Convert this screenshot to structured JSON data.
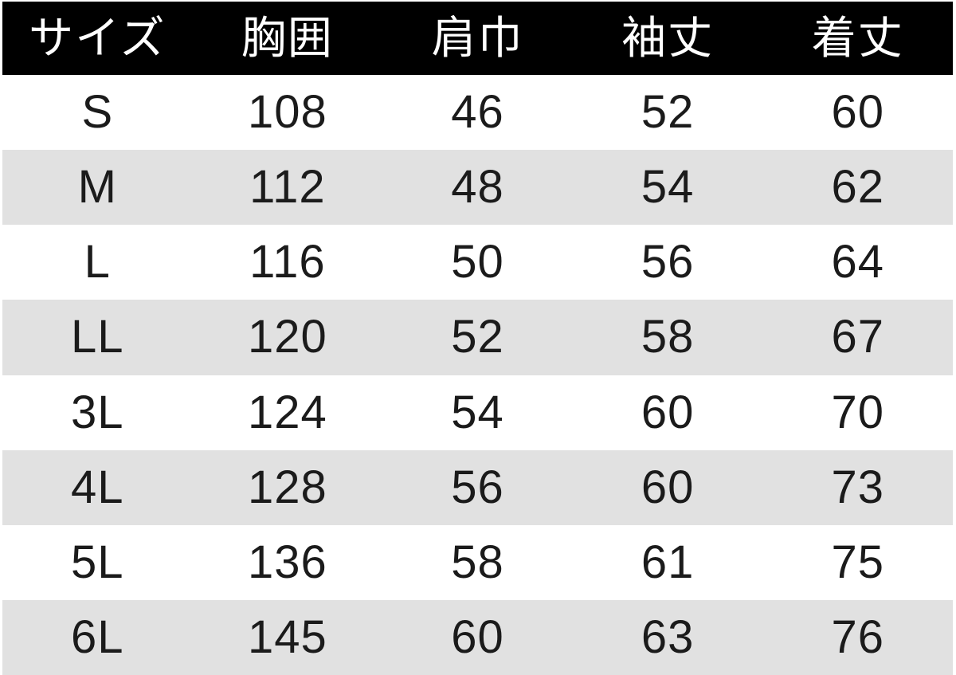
{
  "colors": {
    "header_bg": "#000000",
    "header_text": "#ffffff",
    "row_bg": "#ffffff",
    "row_alt_bg": "#e1e1e1",
    "cell_text": "#1b1b1b"
  },
  "chart_data": {
    "type": "table",
    "columns": [
      "サイズ",
      "胸囲",
      "肩巾",
      "袖丈",
      "着丈"
    ],
    "rows": [
      [
        "S",
        "108",
        "46",
        "52",
        "60"
      ],
      [
        "M",
        "112",
        "48",
        "54",
        "62"
      ],
      [
        "L",
        "116",
        "50",
        "56",
        "64"
      ],
      [
        "LL",
        "120",
        "52",
        "58",
        "67"
      ],
      [
        "3L",
        "124",
        "54",
        "60",
        "70"
      ],
      [
        "4L",
        "128",
        "56",
        "60",
        "73"
      ],
      [
        "5L",
        "136",
        "58",
        "61",
        "75"
      ],
      [
        "6L",
        "145",
        "60",
        "63",
        "76"
      ]
    ]
  }
}
